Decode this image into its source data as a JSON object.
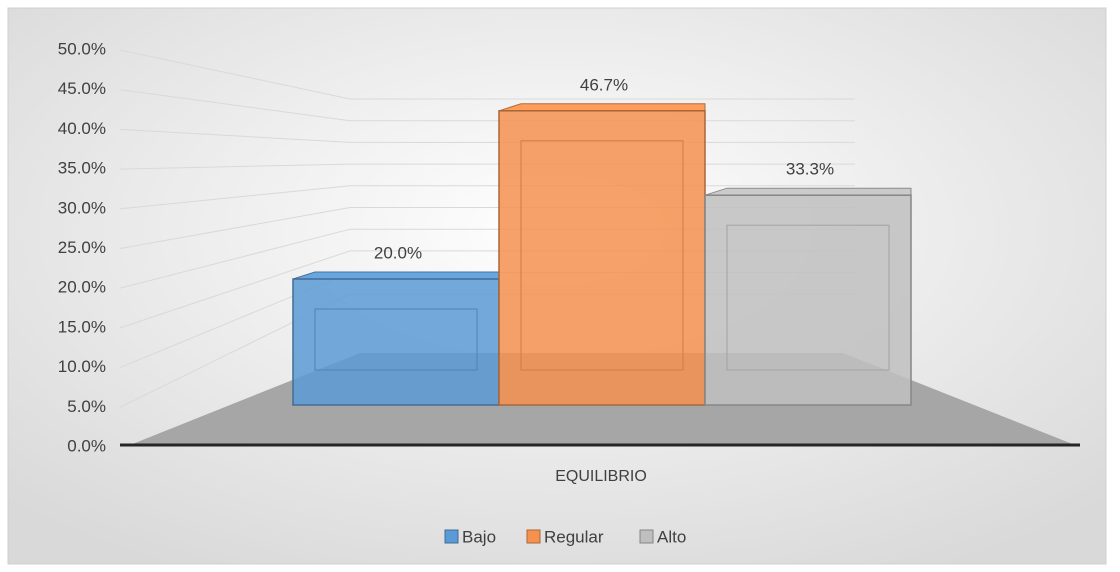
{
  "chart_data": {
    "type": "bar3d",
    "categories": [
      "EQUILIBRIO"
    ],
    "series": [
      {
        "name": "Bajo",
        "color": "#5b9bd5",
        "values": [
          20.0
        ],
        "value_labels": [
          "20.0%"
        ]
      },
      {
        "name": "Regular",
        "color": "#f4914f",
        "values": [
          46.7
        ],
        "value_labels": [
          "46.7%"
        ]
      },
      {
        "name": "Alto",
        "color": "#bfbfbf",
        "values": [
          33.3
        ],
        "value_labels": [
          "33.3%"
        ]
      }
    ],
    "ylim": [
      0,
      50
    ],
    "yticks": [
      {
        "value": 0,
        "label": "0.0%"
      },
      {
        "value": 5,
        "label": "5.0%"
      },
      {
        "value": 10,
        "label": "10.0%"
      },
      {
        "value": 15,
        "label": "15.0%"
      },
      {
        "value": 20,
        "label": "20.0%"
      },
      {
        "value": 25,
        "label": "25.0%"
      },
      {
        "value": 30,
        "label": "30.0%"
      },
      {
        "value": 35,
        "label": "35.0%"
      },
      {
        "value": 40,
        "label": "40.0%"
      },
      {
        "value": 45,
        "label": "45.0%"
      },
      {
        "value": 50,
        "label": "50.0%"
      }
    ],
    "grid": true,
    "legend": "bottom"
  }
}
